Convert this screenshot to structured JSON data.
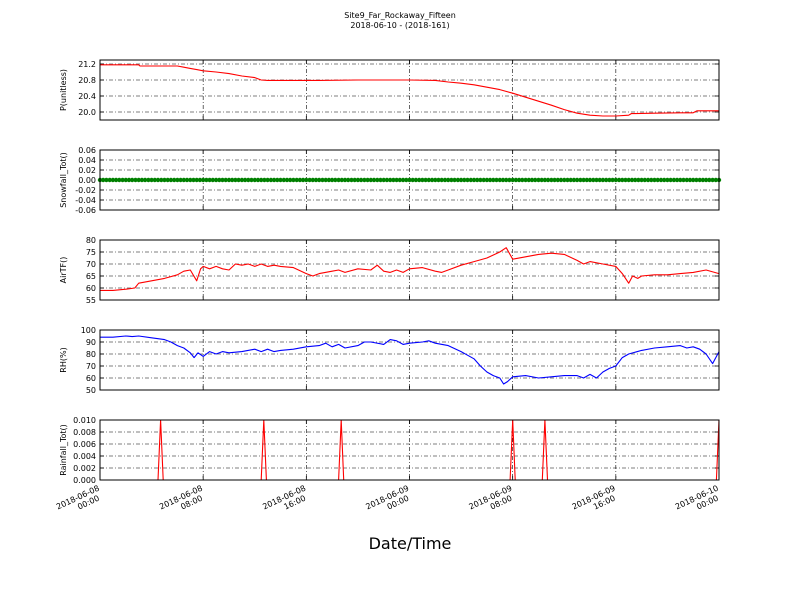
{
  "figure": {
    "title": "Site9_Far_Rockaway_Fifteen",
    "subtitle": "2018-06-10 - (2018-161)",
    "xlabel": "Date/Time"
  },
  "chart_data": [
    {
      "type": "line",
      "ylabel": "P(unitless)",
      "ylim": [
        19.8,
        21.3
      ],
      "yticks": [
        "20.0",
        "20.4",
        "20.8",
        "21.2"
      ],
      "ytick_values": [
        20.0,
        20.4,
        20.8,
        21.2
      ],
      "xlim": [
        0,
        48
      ],
      "grid": true,
      "color": "#ff0000",
      "x": [
        0,
        3,
        3.1,
        6,
        6.5,
        7,
        7.5,
        8,
        9,
        10,
        11,
        12,
        12.5,
        13,
        17,
        20,
        24,
        26,
        27,
        28,
        29,
        30,
        31,
        32,
        33,
        34,
        35,
        36,
        37,
        38,
        39,
        40,
        41,
        41.2,
        43,
        45,
        46,
        46.3,
        48
      ],
      "y": [
        21.18,
        21.18,
        21.15,
        21.15,
        21.12,
        21.09,
        21.06,
        21.03,
        21.0,
        20.96,
        20.9,
        20.86,
        20.8,
        20.79,
        20.79,
        20.8,
        20.8,
        20.79,
        20.75,
        20.72,
        20.68,
        20.62,
        20.56,
        20.47,
        20.37,
        20.27,
        20.17,
        20.06,
        19.97,
        19.92,
        19.9,
        19.9,
        19.92,
        19.96,
        19.97,
        19.98,
        19.98,
        20.03,
        20.03
      ]
    },
    {
      "type": "scatter",
      "ylabel": "Snowfall_Tot()",
      "ylim": [
        -0.06,
        0.06
      ],
      "yticks": [
        "-0.06",
        "-0.04",
        "-0.02",
        "0.00",
        "0.02",
        "0.04",
        "0.06"
      ],
      "ytick_values": [
        -0.06,
        -0.04,
        -0.02,
        0.0,
        0.02,
        0.04,
        0.06
      ],
      "xlim": [
        0,
        48
      ],
      "grid": true,
      "color": "#008000",
      "x_start": 0,
      "x_end": 48,
      "x_step": 0.25,
      "constant_value": 0.0
    },
    {
      "type": "line",
      "ylabel": "AirTF()",
      "ylim": [
        55,
        80
      ],
      "yticks": [
        "55",
        "60",
        "65",
        "70",
        "75",
        "80"
      ],
      "ytick_values": [
        55,
        60,
        65,
        70,
        75,
        80
      ],
      "xlim": [
        0,
        48
      ],
      "grid": true,
      "color": "#ff0000",
      "x": [
        0,
        1,
        2,
        2.7,
        3,
        4,
        5,
        6,
        6.5,
        7,
        7.5,
        7.8,
        8,
        8.5,
        9,
        9.5,
        10,
        10.5,
        11,
        11.5,
        12,
        12.5,
        13,
        13.5,
        14,
        15,
        16,
        16.5,
        17,
        18,
        18.5,
        19,
        20,
        21,
        21.5,
        22,
        22.5,
        23,
        23.5,
        24,
        25,
        26,
        26.5,
        27,
        28,
        29,
        30,
        31,
        31.5,
        32,
        33,
        34,
        35,
        36,
        37,
        37.5,
        38,
        39,
        40,
        40.5,
        41,
        41.3,
        41.7,
        42,
        43,
        44,
        45,
        46,
        47,
        48
      ],
      "y": [
        59,
        59,
        59.5,
        60,
        62,
        63,
        64,
        65.5,
        67,
        67.5,
        63,
        68,
        69,
        68,
        69,
        68,
        67.5,
        70,
        69.5,
        70,
        69,
        70,
        69,
        69.5,
        69,
        68.5,
        66,
        65,
        66,
        67,
        67.5,
        66.5,
        68,
        67.5,
        69.5,
        67,
        66.5,
        67.5,
        66.5,
        68,
        68.5,
        67,
        66.5,
        67.5,
        69.5,
        71,
        72.5,
        75,
        76.8,
        72,
        73,
        74,
        74.5,
        74,
        71.5,
        70,
        71,
        70,
        69,
        66,
        62,
        65,
        64,
        65,
        65.5,
        65.5,
        66,
        66.5,
        67.5,
        66
      ]
    },
    {
      "type": "line",
      "ylabel": "RH(%)",
      "ylim": [
        50,
        100
      ],
      "yticks": [
        "50",
        "60",
        "70",
        "80",
        "90",
        "100"
      ],
      "ytick_values": [
        50,
        60,
        70,
        80,
        90,
        100
      ],
      "xlim": [
        0,
        48
      ],
      "grid": true,
      "color": "#0000ff",
      "x": [
        0,
        1,
        2,
        2.5,
        3,
        4,
        5,
        5.5,
        6,
        6.5,
        7,
        7.3,
        7.6,
        8,
        8.5,
        9,
        9.5,
        10,
        11,
        12,
        12.5,
        13,
        13.5,
        14,
        15,
        16,
        17,
        17.5,
        18,
        18.5,
        19,
        20,
        20.5,
        21,
        22,
        22.5,
        23,
        23.5,
        24,
        25,
        25.5,
        26,
        27,
        28,
        28.5,
        29,
        29.5,
        30,
        30.5,
        31,
        31.3,
        31.6,
        32,
        33,
        34,
        35,
        36,
        37,
        37.5,
        38,
        38.5,
        39,
        39.5,
        40,
        40.5,
        41,
        42,
        43,
        44,
        45,
        45.5,
        46,
        46.5,
        47,
        47.5,
        48
      ],
      "y": [
        94,
        94,
        95,
        94.5,
        95,
        93.5,
        92,
        90,
        87,
        85,
        81,
        77,
        81,
        78,
        82,
        80,
        82,
        81,
        82,
        84,
        82,
        84,
        82,
        83,
        84,
        86,
        87,
        89,
        86,
        88,
        85,
        87,
        90,
        90,
        88,
        92,
        91,
        88,
        89,
        90,
        91,
        89,
        87,
        82,
        79,
        76,
        70,
        65,
        62,
        60,
        55,
        57,
        61,
        62,
        60,
        61,
        62,
        62,
        60,
        63,
        60,
        65,
        68,
        70,
        77,
        80,
        83,
        85,
        86,
        87,
        85,
        86,
        84,
        80,
        72,
        82
      ]
    },
    {
      "type": "line",
      "ylabel": "Rainfall_Tot()",
      "ylim": [
        0.0,
        0.01
      ],
      "yticks": [
        "0.000",
        "0.002",
        "0.004",
        "0.006",
        "0.008",
        "0.010"
      ],
      "ytick_values": [
        0.0,
        0.002,
        0.004,
        0.006,
        0.008,
        0.01
      ],
      "xlim": [
        0,
        48
      ],
      "grid": true,
      "color": "#ff0000",
      "x": [
        0,
        4.5,
        4.7,
        4.9,
        12.5,
        12.7,
        12.9,
        18.5,
        18.7,
        18.9,
        31.8,
        32,
        32.2,
        34.3,
        34.5,
        34.7,
        47.8,
        48
      ],
      "y": [
        0,
        0,
        0.01,
        0,
        0,
        0.01,
        0,
        0,
        0.01,
        0,
        0,
        0.01,
        0,
        0,
        0.01,
        0,
        0,
        0.01
      ]
    }
  ],
  "x_axis": {
    "tick_values": [
      0,
      8,
      16,
      24,
      32,
      40,
      48
    ],
    "tick_labels": [
      [
        "2018-06-08",
        "00:00"
      ],
      [
        "2018-06-08",
        "08:00"
      ],
      [
        "2018-06-08",
        "16:00"
      ],
      [
        "2018-06-09",
        "00:00"
      ],
      [
        "2018-06-09",
        "08:00"
      ],
      [
        "2018-06-09",
        "16:00"
      ],
      [
        "2018-06-10",
        "00:00"
      ]
    ]
  }
}
